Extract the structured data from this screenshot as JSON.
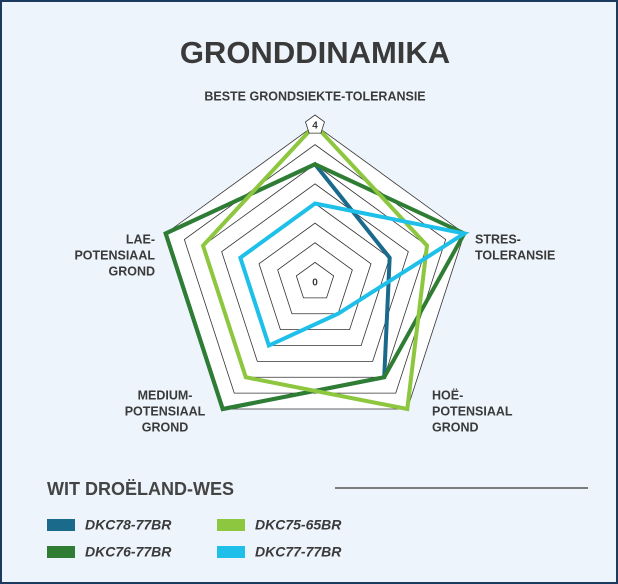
{
  "chart_data": {
    "type": "radar",
    "title": "GRONDDINAMIKA",
    "axes": [
      [
        "BESTE GRONDSIEKTE-TOLERANSIE"
      ],
      [
        "STRES-",
        "TOLERANSIE"
      ],
      [
        "HOË-",
        "POTENSIAAL",
        "GROND"
      ],
      [
        "MEDIUM-",
        "POTENSIAAL",
        "GROND"
      ],
      [
        "LAE-",
        "POTENSIAAL",
        "GROND"
      ]
    ],
    "rlim": [
      0,
      4
    ],
    "rticks": [
      0,
      0.5,
      1,
      1.5,
      2,
      2.5,
      3,
      3.5,
      4
    ],
    "legend_title": "WIT DROËLAND-WES",
    "series": [
      {
        "name": "DKC78-77BR",
        "color": "#1a6a8c",
        "values": [
          3,
          2,
          3,
          4,
          4
        ]
      },
      {
        "name": "DKC76-77BR",
        "color": "#2e7d32",
        "values": [
          3,
          4,
          3,
          4,
          4
        ]
      },
      {
        "name": "DKC75-65BR",
        "color": "#8dc63f",
        "values": [
          4,
          3,
          4,
          3,
          3
        ]
      },
      {
        "name": "DKC77-77BR",
        "color": "#1ec0ea",
        "values": [
          2,
          4,
          1,
          2,
          2
        ]
      }
    ]
  }
}
